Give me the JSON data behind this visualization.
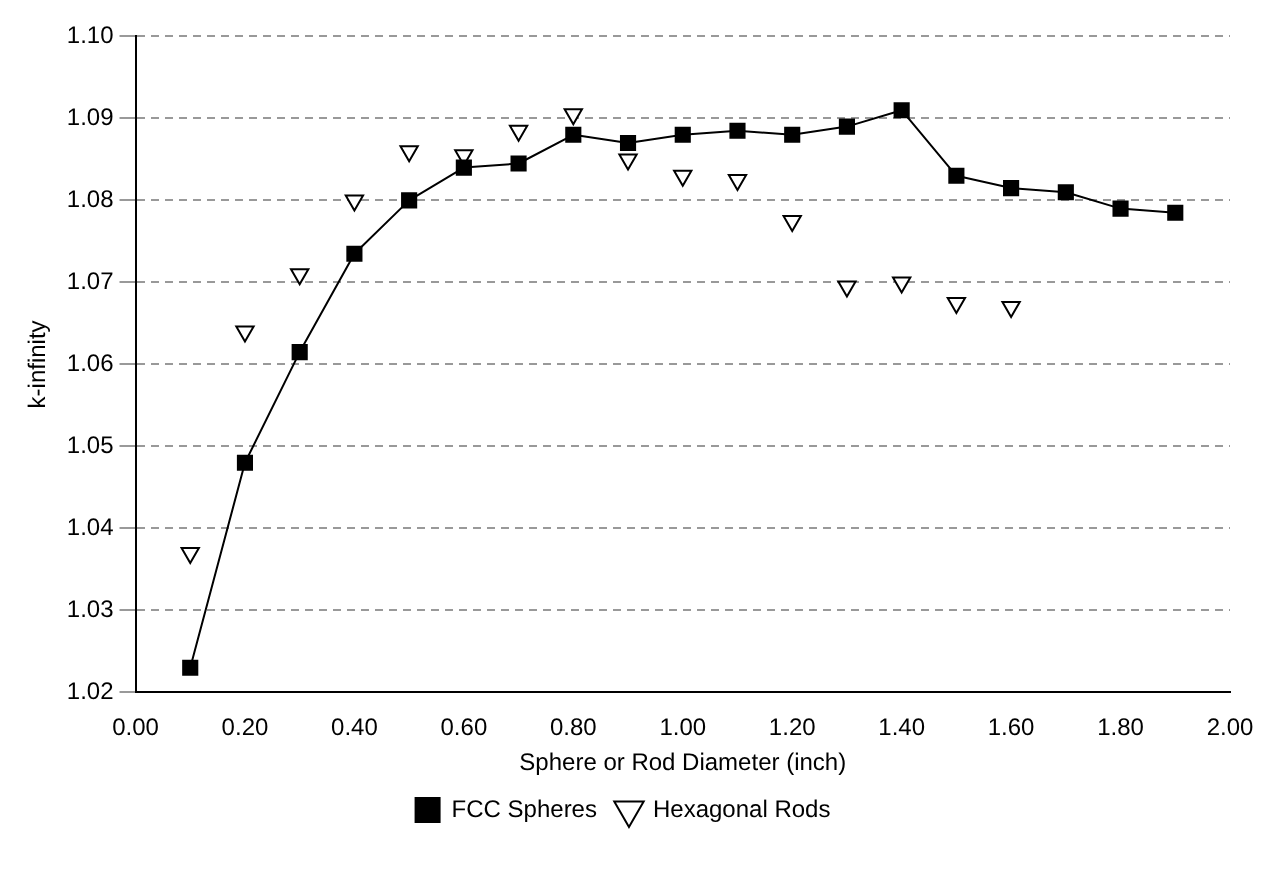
{
  "chart_data": {
    "type": "line",
    "xlabel": "Sphere or Rod Diameter (inch)",
    "ylabel": "k-infinity",
    "xlim": [
      0,
      2
    ],
    "xticks": [
      {
        "value": 0,
        "label": "0.00"
      },
      {
        "value": 0.2,
        "label": "0.20"
      },
      {
        "value": 0.4,
        "label": "0.40"
      },
      {
        "value": 0.6,
        "label": "0.60"
      },
      {
        "value": 0.8,
        "label": "0.80"
      },
      {
        "value": 1,
        "label": "1.00"
      },
      {
        "value": 1.2,
        "label": "1.20"
      },
      {
        "value": 1.4,
        "label": "1.40"
      },
      {
        "value": 1.6,
        "label": "1.60"
      },
      {
        "value": 1.8,
        "label": "1.80"
      },
      {
        "value": 2,
        "label": "2.00"
      }
    ],
    "ylim": [
      1.02,
      1.1
    ],
    "yticks": [
      1.02,
      1.03,
      1.04,
      1.05,
      1.06,
      1.07,
      1.08,
      1.09,
      {
        "value": 1.1,
        "label": "1.10"
      }
    ],
    "grid": "y",
    "legend": "bottom",
    "line_style": "solid",
    "series": [
      {
        "name": "FCC Spheres",
        "marker": "square",
        "color": "#000000",
        "x": [
          0.1,
          0.2,
          0.3,
          0.4,
          0.5,
          0.6,
          0.7,
          0.8,
          0.9,
          1.0,
          1.1,
          1.2,
          1.3,
          1.4,
          1.5,
          1.6,
          1.7,
          1.8,
          1.9
        ],
        "values": [
          1.023,
          1.048,
          1.0615,
          1.0735,
          1.08,
          1.084,
          1.0845,
          1.088,
          1.087,
          1.088,
          1.0885,
          1.088,
          1.089,
          1.091,
          1.083,
          1.0815,
          1.081,
          1.079,
          1.0785
        ]
      },
      {
        "name": "Hexagonal Rods",
        "type": "scatter",
        "marker": "triangle",
        "color": "#000000",
        "x": [
          0.1,
          0.2,
          0.3,
          0.4,
          0.5,
          0.6,
          0.7,
          0.8,
          0.9,
          1.0,
          1.1,
          1.2,
          1.3,
          1.4,
          1.5,
          1.6
        ],
        "values": [
          1.037,
          1.064,
          1.071,
          1.08,
          1.086,
          1.0855,
          1.0885,
          1.0905,
          1.085,
          1.083,
          1.0825,
          1.0775,
          1.0695,
          1.07,
          1.0675,
          1.067
        ]
      }
    ]
  }
}
